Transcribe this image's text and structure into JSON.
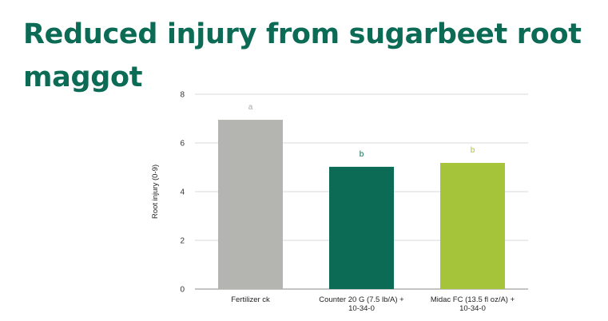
{
  "title": "Reduced injury from sugarbeet root maggot",
  "colors": {
    "title": "#0b6b55",
    "grid": "#d9d9d9",
    "axis": "#888888"
  },
  "chart_data": {
    "type": "bar",
    "title": "",
    "xlabel": "",
    "ylabel": "Root injury (0-9)",
    "ylim": [
      0,
      8
    ],
    "yticks": [
      0,
      2,
      4,
      6,
      8
    ],
    "grid": true,
    "legend": "none",
    "categories": [
      [
        "Fertilizer ck"
      ],
      [
        "Counter 20 G (7.5 lb/A) +",
        "10-34-0"
      ],
      [
        "Midac FC (13.5 fl oz/A) +",
        "10-34-0"
      ]
    ],
    "values": [
      6.95,
      5.02,
      5.18
    ],
    "bar_colors": [
      "#b4b4b0",
      "#0b6b55",
      "#a5c43a"
    ],
    "data_labels": [
      "a",
      "b",
      "b"
    ],
    "data_label_colors": [
      "#a8a8a4",
      "#0b6b55",
      "#a5c43a"
    ]
  }
}
